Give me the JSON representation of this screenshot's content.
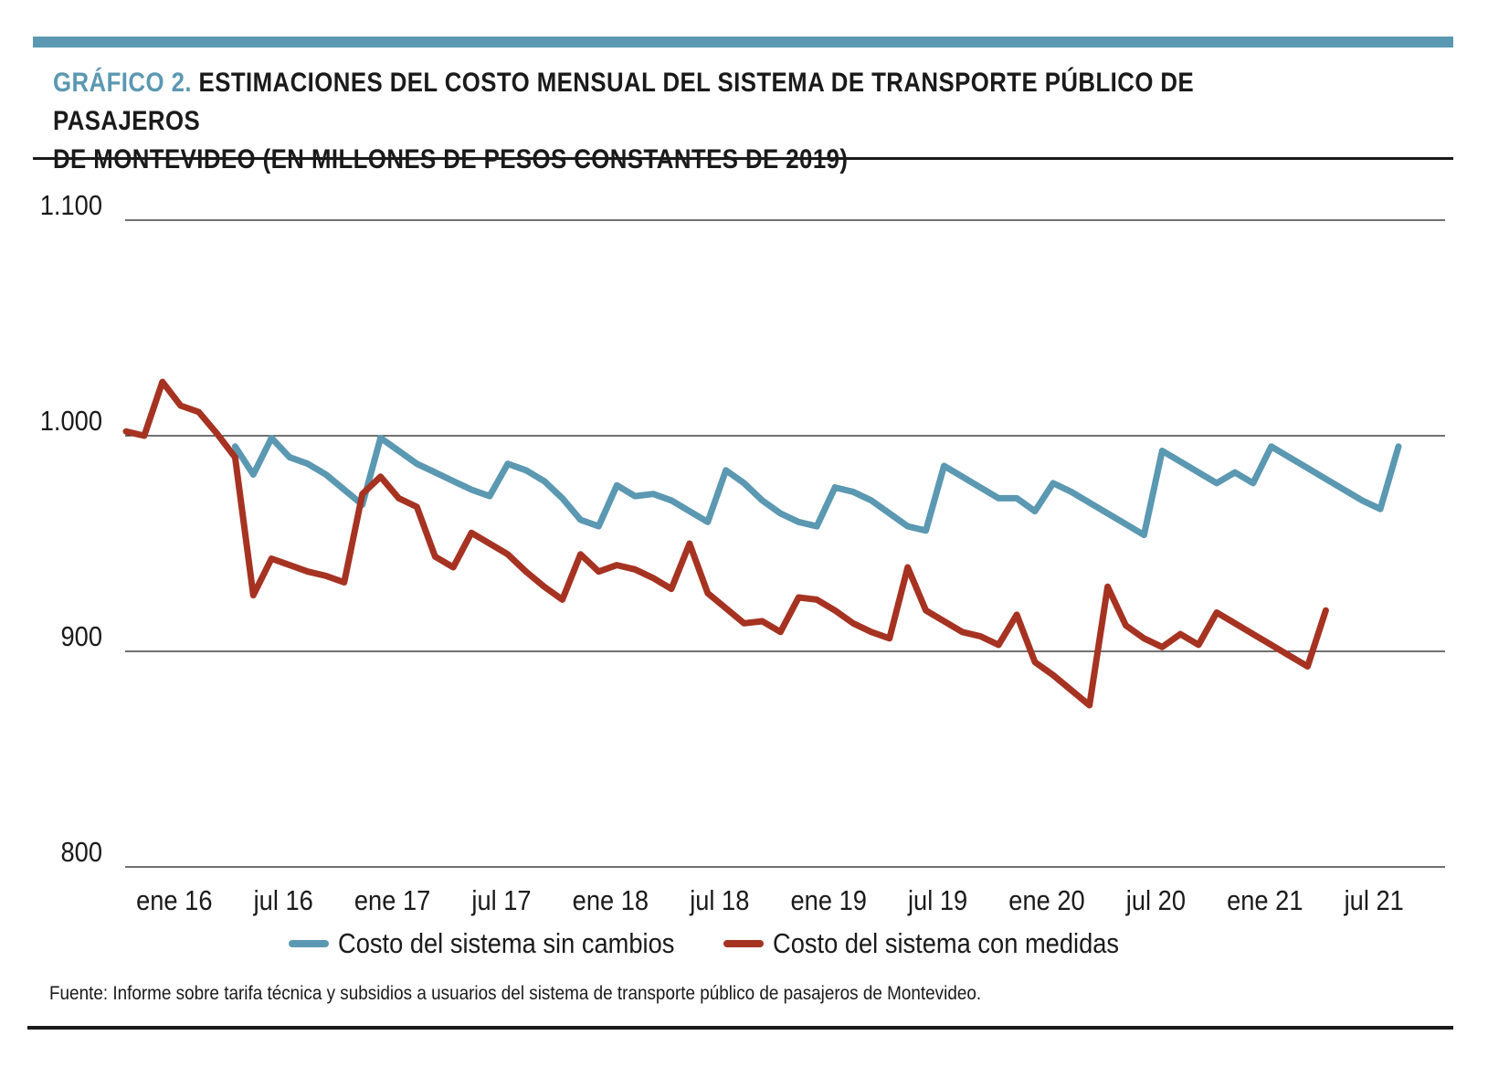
{
  "header": {
    "title_prefix": "GRÁFICO 2.",
    "title_line1": " ESTIMACIONES DEL COSTO MENSUAL DEL SISTEMA DE TRANSPORTE PÚBLICO DE PASAJEROS",
    "title_line2": "DE MONTEVIDEO (EN MILLONES DE PESOS CONSTANTES DE 2019)"
  },
  "source": "Fuente: Informe sobre tarifa técnica y subsidios a usuarios del sistema de transporte público de pasajeros de Montevideo.",
  "colors": {
    "accent": "#5b98b1",
    "series_sin": "#5b98b1",
    "series_con": "#a63322"
  },
  "chart_data": {
    "type": "line",
    "title": "",
    "xlabel": "",
    "ylabel": "",
    "ylim": [
      800,
      1100
    ],
    "yticks": [
      800,
      900,
      1000,
      1100
    ],
    "ytick_labels": [
      "800",
      "900",
      "1.000",
      "1.100"
    ],
    "grid": "horizontal",
    "legend_position": "bottom",
    "x_tick_labels": [
      "ene 16",
      "jul 16",
      "ene 17",
      "jul 17",
      "ene 18",
      "jul 18",
      "ene 19",
      "jul 19",
      "ene 20",
      "jul 20",
      "ene 21",
      "jul 21"
    ],
    "x_tick_month_index": [
      0,
      6,
      12,
      18,
      24,
      30,
      36,
      42,
      48,
      54,
      60,
      66
    ],
    "x_months": [
      -2,
      -1,
      0,
      1,
      2,
      3,
      4,
      5,
      6,
      7,
      8,
      9,
      10,
      11,
      12,
      13,
      14,
      15,
      16,
      17,
      18,
      19,
      20,
      21,
      22,
      23,
      24,
      25,
      26,
      27,
      28,
      29,
      30,
      31,
      32,
      33,
      34,
      35,
      36,
      37,
      38,
      39,
      40,
      41,
      42,
      43,
      44,
      45,
      46,
      47,
      48,
      49,
      50,
      51,
      52,
      53,
      54,
      55,
      56,
      57,
      58,
      59,
      60,
      61,
      62,
      63,
      64,
      65,
      66,
      67,
      68,
      69,
      70
    ],
    "series": [
      {
        "name": "Costo del sistema sin cambios",
        "color": "#5b98b1",
        "start_month": 4,
        "values": [
          995,
          982,
          999,
          990,
          987,
          982,
          975,
          968,
          999,
          993,
          987,
          983,
          979,
          975,
          972,
          987,
          984,
          979,
          971,
          961,
          958,
          977,
          972,
          973,
          970,
          965,
          960,
          984,
          978,
          970,
          964,
          960,
          958,
          976,
          974,
          970,
          964,
          958,
          956,
          986,
          981,
          976,
          971,
          971,
          965,
          978,
          974,
          969,
          964,
          959,
          954,
          993,
          988,
          983,
          978,
          983,
          978,
          995,
          990,
          985,
          980,
          975,
          970,
          966,
          995
        ]
      },
      {
        "name": "Costo del sistema con medidas",
        "color": "#a63322",
        "start_month": -2,
        "values": [
          1002,
          1000,
          1025,
          1014,
          1011,
          1001,
          990,
          926,
          943,
          940,
          937,
          935,
          932,
          973,
          981,
          971,
          967,
          944,
          939,
          955,
          950,
          945,
          937,
          930,
          924,
          945,
          937,
          940,
          938,
          934,
          929,
          950,
          927,
          920,
          913,
          914,
          909,
          925,
          924,
          919,
          913,
          909,
          906,
          939,
          919,
          914,
          909,
          907,
          903,
          917,
          895,
          889,
          882,
          875,
          930,
          912,
          906,
          902,
          908,
          903,
          918,
          913,
          908,
          903,
          898,
          893,
          919
        ]
      }
    ]
  }
}
